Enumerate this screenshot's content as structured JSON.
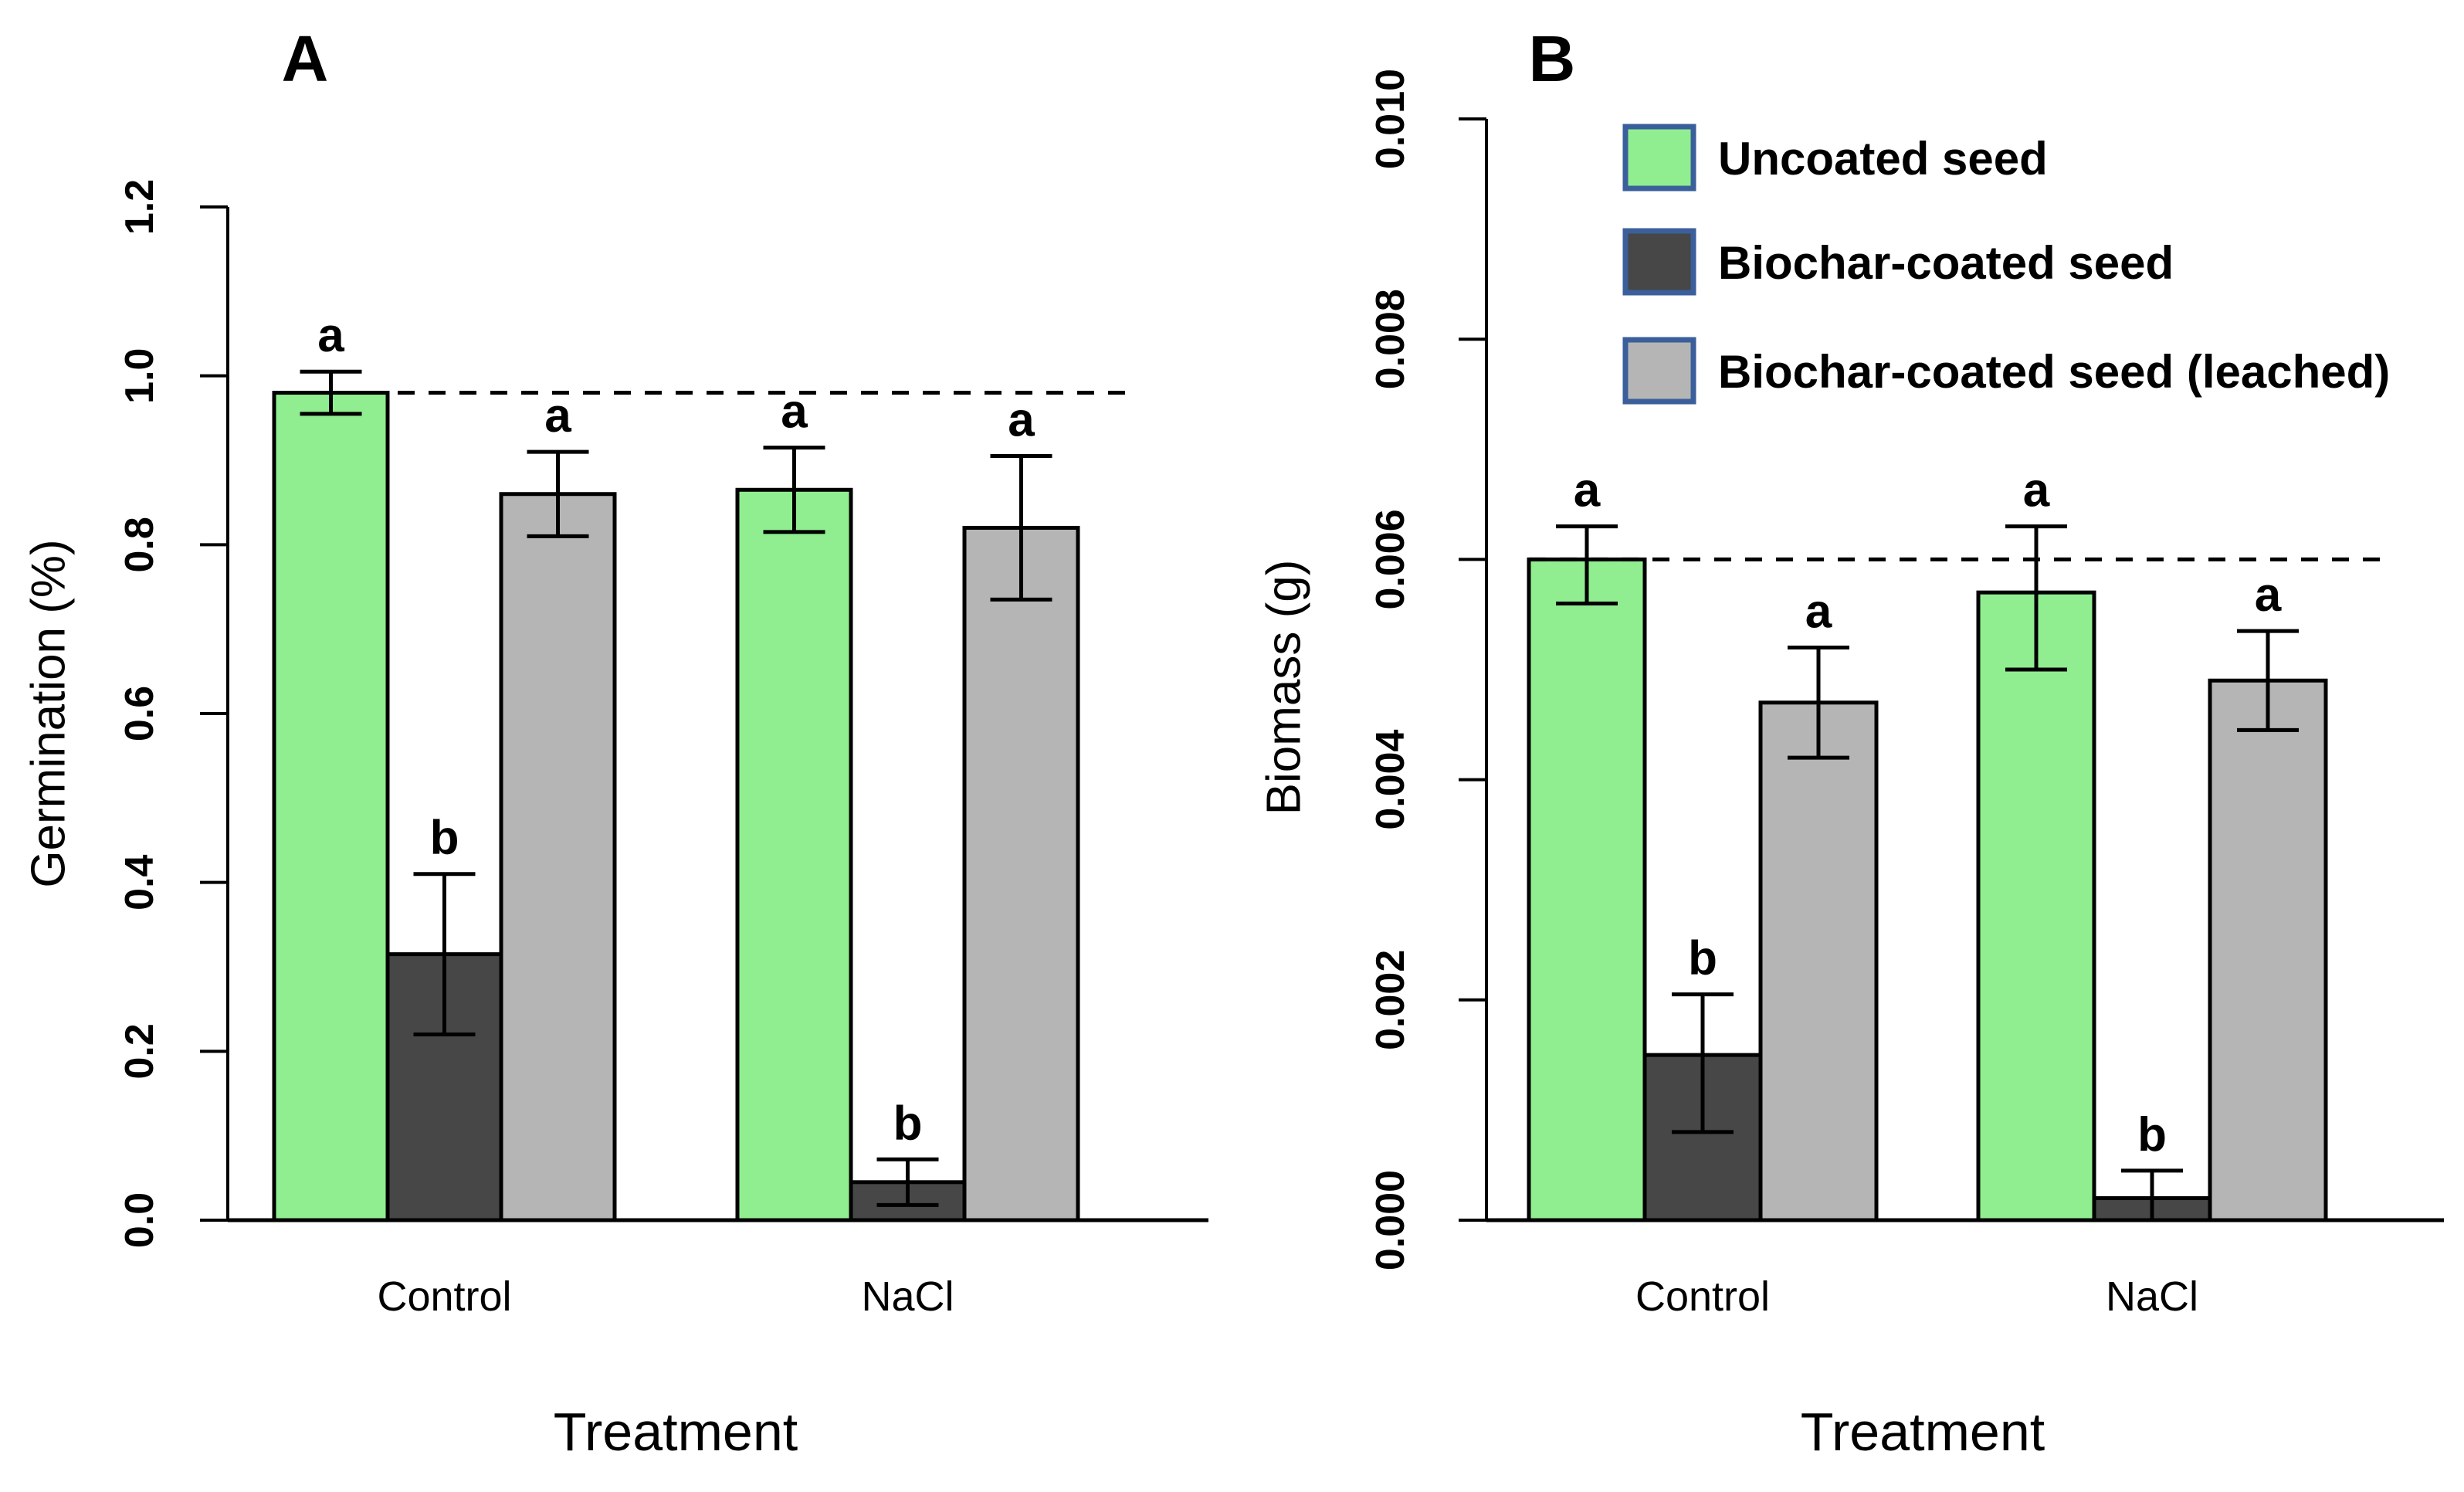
{
  "figure": {
    "background": "#ffffff",
    "colors": {
      "uncoated": "#90EE90",
      "biochar_coated": "#474747",
      "leached": "#B5B5B5",
      "bar_border": "#000000",
      "legend_swatch_border": "#3A5F9B",
      "axis": "#000000",
      "text": "#000000",
      "dashed_line": "#000000"
    },
    "legend": {
      "position": "top-right",
      "items": [
        {
          "swatch": "uncoated",
          "label": "Uncoated seed"
        },
        {
          "swatch": "biochar_coated",
          "label": "Biochar-coated seed"
        },
        {
          "swatch": "leached",
          "label": "Biochar-coated seed (leached)"
        }
      ]
    }
  },
  "chart_data": [
    {
      "type": "bar",
      "panel_label": "A",
      "title": "",
      "xlabel": "Treatment",
      "ylabel": "Germination (%)",
      "ylim": [
        0,
        1.2
      ],
      "ytick_labels": [
        "0.0",
        "0.2",
        "0.4",
        "0.6",
        "0.8",
        "1.0",
        "1.2"
      ],
      "categories": [
        "Control",
        "NaCl"
      ],
      "grid": false,
      "legend_position": "none",
      "dashed_reference_line": 0.98,
      "series": [
        {
          "name": "Uncoated seed",
          "color_key": "uncoated",
          "values": [
            0.98,
            0.865
          ],
          "err_low": [
            0.955,
            0.815
          ],
          "err_high": [
            1.005,
            0.915
          ],
          "sig_letters": [
            "a",
            "a"
          ]
        },
        {
          "name": "Biochar-coated seed",
          "color_key": "biochar_coated",
          "values": [
            0.315,
            0.045
          ],
          "err_low": [
            0.22,
            0.018
          ],
          "err_high": [
            0.41,
            0.072
          ],
          "sig_letters": [
            "b",
            "b"
          ]
        },
        {
          "name": "Biochar-coated seed (leached)",
          "color_key": "leached",
          "values": [
            0.86,
            0.82
          ],
          "err_low": [
            0.81,
            0.735
          ],
          "err_high": [
            0.91,
            0.905
          ],
          "sig_letters": [
            "a",
            "a"
          ]
        }
      ]
    },
    {
      "type": "bar",
      "panel_label": "B",
      "title": "",
      "xlabel": "Treatment",
      "ylabel": "Biomass (g)",
      "ylim": [
        0,
        0.01
      ],
      "ytick_labels": [
        "0.000",
        "0.002",
        "0.004",
        "0.006",
        "0.008",
        "0.010"
      ],
      "categories": [
        "Control",
        "NaCl"
      ],
      "grid": false,
      "legend_position": "top-right",
      "dashed_reference_line": 0.006,
      "series": [
        {
          "name": "Uncoated seed",
          "color_key": "uncoated",
          "values": [
            0.006,
            0.0057
          ],
          "err_low": [
            0.0056,
            0.005
          ],
          "err_high": [
            0.0063,
            0.0063
          ],
          "sig_letters": [
            "a",
            "a"
          ]
        },
        {
          "name": "Biochar-coated seed",
          "color_key": "biochar_coated",
          "values": [
            0.0015,
            0.0002
          ],
          "err_low": [
            0.0008,
            0.0
          ],
          "err_high": [
            0.00205,
            0.00045
          ],
          "sig_letters": [
            "b",
            "b"
          ]
        },
        {
          "name": "Biochar-coated seed (leached)",
          "color_key": "leached",
          "values": [
            0.0047,
            0.0049
          ],
          "err_low": [
            0.0042,
            0.00445
          ],
          "err_high": [
            0.0052,
            0.00535
          ],
          "sig_letters": [
            "a",
            "a"
          ]
        }
      ]
    }
  ]
}
